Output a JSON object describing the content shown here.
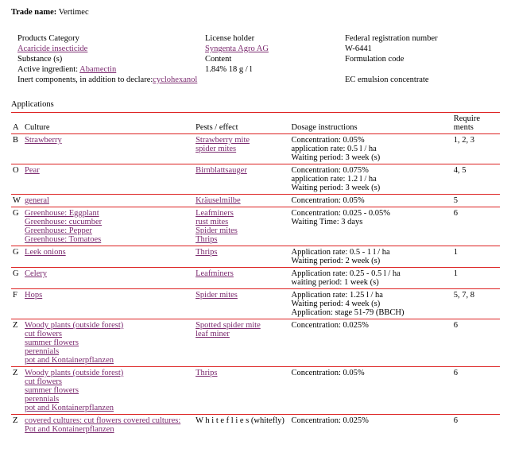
{
  "trade_name_label": "Trade name:",
  "trade_name_value": "Vertimec",
  "info": {
    "products_category_label": "Products Category",
    "products_category_link": "Acaricide insecticide",
    "license_holder_label": "License holder",
    "license_holder_link": "Syngenta Agro AG",
    "federal_reg_label": "Federal registration number",
    "federal_reg_value": "W-6441",
    "substance_label": "Substance (s)",
    "content_label": "Content",
    "formulation_label": "Formulation code",
    "active_ingredient_label": "Active ingredient: ",
    "active_ingredient_link": "Abamectin",
    "content_value": "1.84% 18 g / l",
    "inert_label": "Inert components, in addition to declare:",
    "inert_link": "cyclohexanol",
    "formulation_value": "EC emulsion concentrate"
  },
  "apps_title": "Applications",
  "hdr": {
    "a": "A",
    "culture": "Culture",
    "pests": "Pests / effect",
    "dosage": "Dosage instructions",
    "req": "Require ments"
  },
  "rows": [
    {
      "a": "B",
      "culture": [
        "Strawberry"
      ],
      "culture_link": true,
      "pests": [
        "Strawberry mite",
        "spider mites"
      ],
      "pests_link": true,
      "dosage": "Concentration: 0.05%\napplication rate: 0.5 l / ha\nWaiting period: 3 week (s)",
      "req": "1, 2, 3"
    },
    {
      "a": "O",
      "culture": [
        "Pear"
      ],
      "culture_link": true,
      "pests": [
        "Birnblattsauger"
      ],
      "pests_link": true,
      "dosage": "Concentration: 0.075%\napplication rate: 1.2 l / ha\nWaiting period: 3 week (s)",
      "req": "4, 5"
    },
    {
      "a": "W",
      "culture": [
        "general"
      ],
      "culture_link": true,
      "pests": [
        "Kräuselmilbe"
      ],
      "pests_link": true,
      "dosage": "Concentration: 0.05%",
      "req": "5"
    },
    {
      "a": "G",
      "culture": [
        "Greenhouse: Eggplant",
        "Greenhouse: cucumber",
        "Greenhouse: Pepper",
        "Greenhouse: Tomatoes"
      ],
      "culture_link": true,
      "pests": [
        "Leafminers",
        "rust mites",
        "Spider mites",
        "Thrips"
      ],
      "pests_link": true,
      "dosage": "Concentration: 0.025 - 0.05%\nWaiting Time: 3 days",
      "req": "6"
    },
    {
      "a": "G",
      "culture": [
        "Leek   onions"
      ],
      "culture_link": true,
      "pests": [
        "Thrips"
      ],
      "pests_link": true,
      "dosage": "Application rate: 0.5 - 1 l / ha\nWaiting period: 2 week (s)",
      "req": "1"
    },
    {
      "a": "G",
      "culture": [
        "Celery"
      ],
      "culture_link": true,
      "pests": [
        "Leafminers"
      ],
      "pests_link": true,
      "dosage": "Application rate: 0.25 - 0.5 l / ha\nwaiting period: 1 week (s)",
      "req": "1"
    },
    {
      "a": "F",
      "culture": [
        "Hops"
      ],
      "culture_link": true,
      "pests": [
        "Spider mites"
      ],
      "pests_link": true,
      "dosage": "Application rate: 1.25 l / ha\nWaiting period: 4 week (s)\nApplication: stage 51-79 (BBCH)",
      "req": "5, 7, 8"
    },
    {
      "a": "Z",
      "culture": [
        "Woody plants (outside forest)",
        "cut flowers",
        "summer flowers",
        "perennials",
        "pot and Kontainerpflanzen"
      ],
      "culture_link": true,
      "pests": [
        "Spotted spider mite",
        "leaf miner"
      ],
      "pests_link": true,
      "dosage": "Concentration: 0.025%",
      "req": "6"
    },
    {
      "a": "Z",
      "culture": [
        "Woody plants (outside forest)",
        "cut flowers",
        "summer flowers",
        "perennials",
        "pot and Kontainerpflanzen"
      ],
      "culture_link": true,
      "pests": [
        "Thrips"
      ],
      "pests_link": true,
      "dosage": "Concentration: 0.05%",
      "req": "6"
    },
    {
      "a": "Z",
      "culture": [
        "covered cultures: cut flowers covered cultures: Pot and Kontainerpflanzen"
      ],
      "culture_link": true,
      "pests": [
        "W h i t e f l i e s (whitefly)"
      ],
      "pests_link": false,
      "dosage": "Concentration: 0.025%",
      "req": "6"
    }
  ]
}
